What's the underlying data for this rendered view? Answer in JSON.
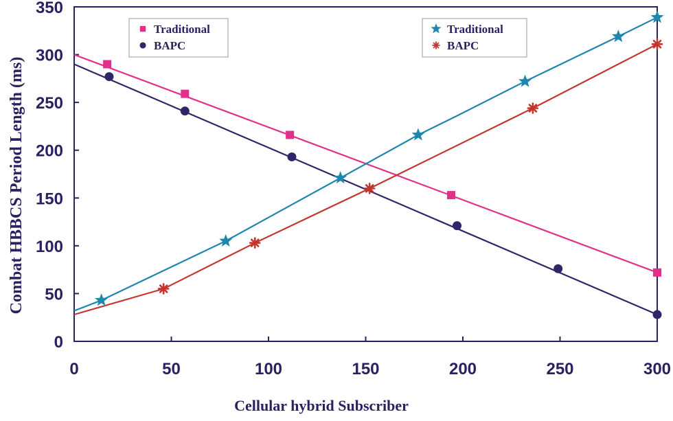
{
  "chart_data": {
    "type": "line",
    "title": "",
    "xlabel": "Cellular hybrid Subscriber",
    "ylabel": "Combat HBBCS Period Length (ms)",
    "xlim": [
      0,
      300
    ],
    "ylim": [
      0,
      350
    ],
    "xticks": [
      "0",
      "50",
      "100",
      "150",
      "200",
      "250",
      "300"
    ],
    "yticks": [
      "0",
      "50",
      "100",
      "150",
      "200",
      "250",
      "300",
      "350"
    ],
    "grid": false,
    "legends": [
      {
        "placement": "top-left",
        "entries": [
          {
            "label": "Traditional",
            "series": 0
          },
          {
            "label": "BAPC",
            "series": 1
          }
        ]
      },
      {
        "placement": "top-right",
        "entries": [
          {
            "label": "Traditional",
            "series": 2
          },
          {
            "label": "BAPC",
            "series": 3
          }
        ]
      }
    ],
    "series": [
      {
        "name": "Traditional",
        "color": "#e0308a",
        "marker": "square",
        "line": [
          [
            0,
            300
          ],
          [
            300,
            72
          ]
        ],
        "points": [
          [
            17,
            290
          ],
          [
            57,
            259
          ],
          [
            111,
            216
          ],
          [
            194,
            153
          ],
          [
            300,
            72
          ]
        ]
      },
      {
        "name": "BAPC",
        "color": "#2e2767",
        "marker": "circle",
        "line": [
          [
            0,
            290
          ],
          [
            300,
            28
          ]
        ],
        "points": [
          [
            18,
            277
          ],
          [
            57,
            241
          ],
          [
            112,
            193
          ],
          [
            197,
            121
          ],
          [
            249,
            76
          ],
          [
            300,
            28
          ]
        ]
      },
      {
        "name": "Traditional",
        "color": "#1f86ad",
        "marker": "star",
        "line": [
          [
            0,
            32
          ],
          [
            14,
            43
          ],
          [
            78,
            105
          ],
          [
            137,
            171
          ],
          [
            177,
            216
          ],
          [
            197,
            236
          ],
          [
            232,
            272
          ],
          [
            280,
            319
          ],
          [
            300,
            339
          ]
        ],
        "points": [
          [
            14,
            43
          ],
          [
            78,
            105
          ],
          [
            137,
            171
          ],
          [
            177,
            216
          ],
          [
            232,
            272
          ],
          [
            280,
            319
          ],
          [
            300,
            339
          ]
        ]
      },
      {
        "name": "BAPC",
        "color": "#c4352e",
        "marker": "asterisk",
        "line": [
          [
            0,
            28
          ],
          [
            46,
            55
          ],
          [
            93,
            103
          ],
          [
            152,
            160
          ],
          [
            236,
            244
          ],
          [
            300,
            311
          ]
        ],
        "points": [
          [
            46,
            55
          ],
          [
            93,
            103
          ],
          [
            152,
            160
          ],
          [
            236,
            244
          ],
          [
            300,
            311
          ]
        ]
      }
    ]
  }
}
